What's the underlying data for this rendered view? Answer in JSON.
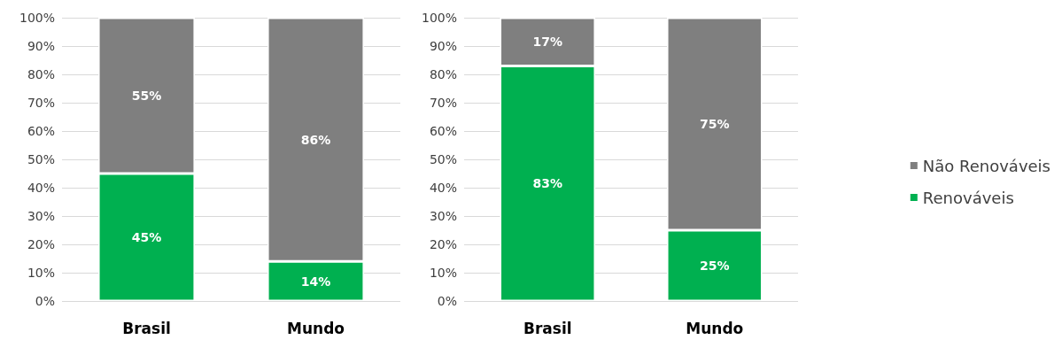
{
  "chart_data": [
    {
      "type": "bar",
      "stacked": true,
      "categories": [
        "Brasil",
        "Mundo"
      ],
      "ylim": [
        0,
        100
      ],
      "yticks": [
        {
          "value": 0,
          "label": "0%"
        },
        {
          "value": 10,
          "label": "10%"
        },
        {
          "value": 20,
          "label": "20%"
        },
        {
          "value": 30,
          "label": "30%"
        },
        {
          "value": 40,
          "label": "40%"
        },
        {
          "value": 50,
          "label": "50%"
        },
        {
          "value": 60,
          "label": "60%"
        },
        {
          "value": 70,
          "label": "70%"
        },
        {
          "value": 80,
          "label": "80%"
        },
        {
          "value": 90,
          "label": "90%"
        },
        {
          "value": 100,
          "label": "100%"
        }
      ],
      "grid": "y",
      "series": [
        {
          "color": "#00b050",
          "values": [
            45,
            14
          ],
          "value_labels": [
            "45%",
            "14%"
          ]
        },
        {
          "color": "#7f7f7f",
          "values": [
            55,
            86
          ],
          "value_labels": [
            "55%",
            "86%"
          ]
        }
      ]
    },
    {
      "type": "bar",
      "stacked": true,
      "categories": [
        "Brasil",
        "Mundo"
      ],
      "ylim": [
        0,
        100
      ],
      "yticks": [
        {
          "value": 0,
          "label": "0%"
        },
        {
          "value": 10,
          "label": "10%"
        },
        {
          "value": 20,
          "label": "20%"
        },
        {
          "value": 30,
          "label": "30%"
        },
        {
          "value": 40,
          "label": "40%"
        },
        {
          "value": 50,
          "label": "50%"
        },
        {
          "value": 60,
          "label": "60%"
        },
        {
          "value": 70,
          "label": "70%"
        },
        {
          "value": 80,
          "label": "80%"
        },
        {
          "value": 90,
          "label": "90%"
        },
        {
          "value": 100,
          "label": "100%"
        }
      ],
      "grid": "y",
      "legend": "right",
      "series": [
        {
          "name": "Renováveis",
          "color": "#00b050",
          "values": [
            83,
            25
          ],
          "value_labels": [
            "83%",
            "25%"
          ]
        },
        {
          "name": "Não Renováveis",
          "color": "#7f7f7f",
          "values": [
            17,
            75
          ],
          "value_labels": [
            "17%",
            "75%"
          ]
        }
      ]
    }
  ]
}
